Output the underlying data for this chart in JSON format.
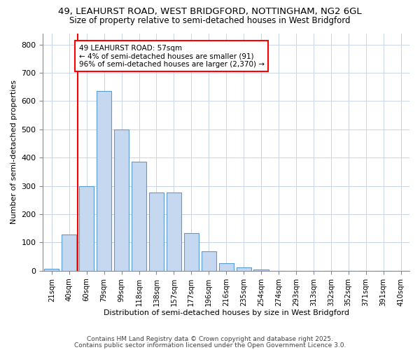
{
  "title1": "49, LEAHURST ROAD, WEST BRIDGFORD, NOTTINGHAM, NG2 6GL",
  "title2": "Size of property relative to semi-detached houses in West Bridgford",
  "xlabel": "Distribution of semi-detached houses by size in West Bridgford",
  "ylabel": "Number of semi-detached properties",
  "categories": [
    "21sqm",
    "40sqm",
    "60sqm",
    "79sqm",
    "99sqm",
    "118sqm",
    "138sqm",
    "157sqm",
    "177sqm",
    "196sqm",
    "216sqm",
    "235sqm",
    "254sqm",
    "274sqm",
    "293sqm",
    "313sqm",
    "332sqm",
    "352sqm",
    "371sqm",
    "391sqm",
    "410sqm"
  ],
  "values": [
    8,
    128,
    300,
    635,
    500,
    385,
    278,
    278,
    133,
    70,
    28,
    12,
    5,
    0,
    0,
    0,
    0,
    0,
    0,
    0,
    0
  ],
  "bar_color": "#c5d8f0",
  "bar_edge_color": "#5b9bd5",
  "red_line_index": 2,
  "annotation_line1": "49 LEAHURST ROAD: 57sqm",
  "annotation_line2": "← 4% of semi-detached houses are smaller (91)",
  "annotation_line3": "96% of semi-detached houses are larger (2,370) →",
  "ylim": [
    0,
    840
  ],
  "yticks": [
    0,
    100,
    200,
    300,
    400,
    500,
    600,
    700,
    800
  ],
  "footer1": "Contains HM Land Registry data © Crown copyright and database right 2025.",
  "footer2": "Contains public sector information licensed under the Open Government Licence 3.0.",
  "bg_color": "#ffffff",
  "plot_bg_color": "#ffffff",
  "grid_color": "#c8d4e8"
}
